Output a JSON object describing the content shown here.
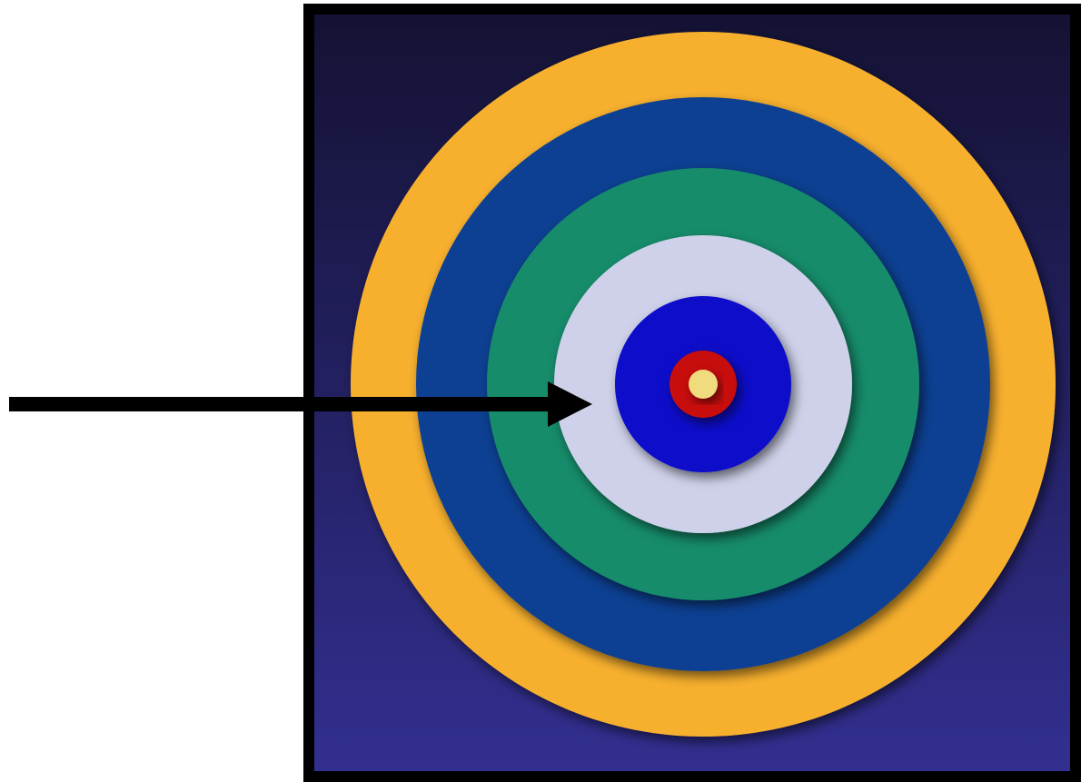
{
  "panel": {
    "background_top": "#141233",
    "background_bottom": "#322f90",
    "border_color": "#000000"
  },
  "target": {
    "rings": [
      {
        "name": "outer-ring",
        "color": "#f7b02e"
      },
      {
        "name": "dark-blue-ring",
        "color": "#114192"
      },
      {
        "name": "green-ring",
        "color": "#138c6b"
      },
      {
        "name": "light-ring",
        "color": "#cfd1ea"
      },
      {
        "name": "blue-ring",
        "color": "#0a0dca"
      },
      {
        "name": "red-ring",
        "color": "#c80c0c"
      },
      {
        "name": "bullseye",
        "color": "#f0dc7e"
      }
    ]
  },
  "arrow": {
    "color": "#000000",
    "points_to": "light-ring"
  }
}
